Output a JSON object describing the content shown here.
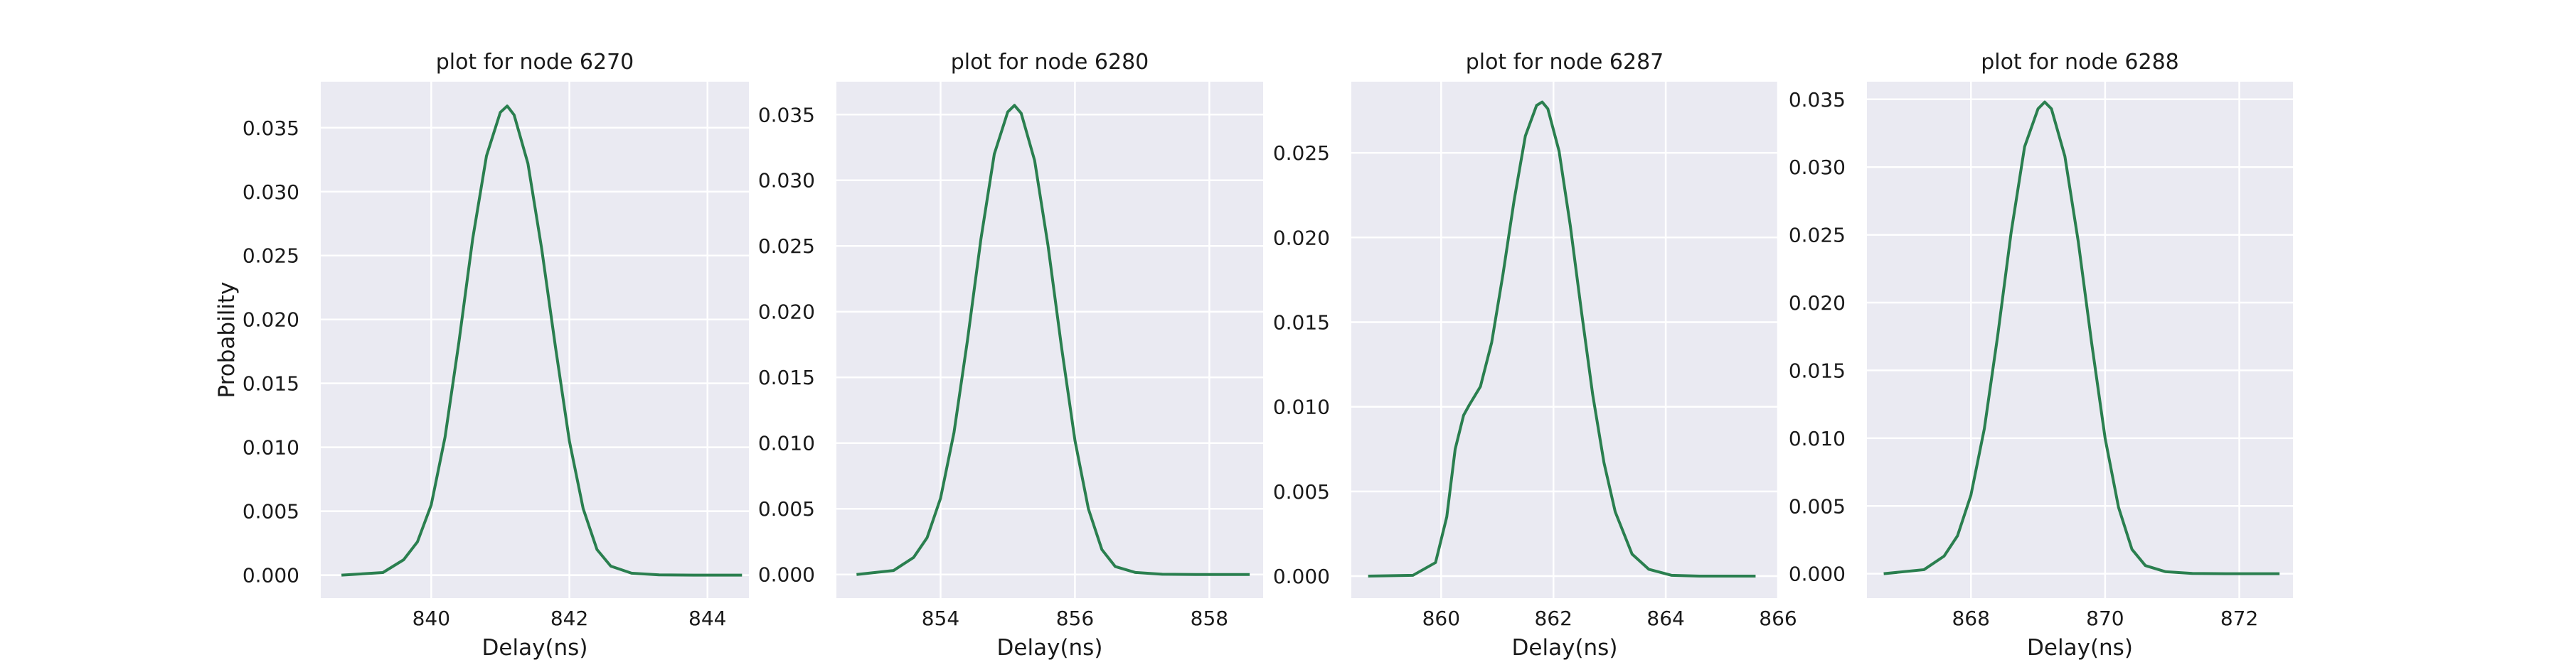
{
  "colors": {
    "line": "#2a7f4f",
    "panel": "#eaeaf2",
    "grid": "#ffffff"
  },
  "chart_data": [
    {
      "type": "line",
      "title": "plot for node 6270",
      "xlabel": "Delay(ns)",
      "ylabel": "Probability",
      "xlim": [
        838.4,
        844.6
      ],
      "ylim": [
        -0.0018,
        0.0386
      ],
      "xticks": [
        840,
        842,
        844
      ],
      "xtick_labels": [
        "840",
        "842",
        "844"
      ],
      "yticks": [
        0.0,
        0.005,
        0.01,
        0.015,
        0.02,
        0.025,
        0.03,
        0.035
      ],
      "ytick_labels": [
        "0.000",
        "0.005",
        "0.010",
        "0.015",
        "0.020",
        "0.025",
        "0.030",
        "0.035"
      ],
      "grid": true,
      "series": [
        {
          "x": [
            838.7,
            839.3,
            839.6,
            839.8,
            840.0,
            840.2,
            840.4,
            840.6,
            840.8,
            841.0,
            841.1,
            841.2,
            841.4,
            841.6,
            841.8,
            842.0,
            842.2,
            842.4,
            842.6,
            842.9,
            843.3,
            843.8,
            844.5
          ],
          "y": [
            0.0,
            0.0002,
            0.0012,
            0.0026,
            0.0055,
            0.0108,
            0.0182,
            0.0263,
            0.0328,
            0.0362,
            0.0367,
            0.036,
            0.0322,
            0.0255,
            0.0178,
            0.0105,
            0.0052,
            0.002,
            0.0007,
            0.00015,
            2e-05,
            0.0,
            0.0
          ]
        }
      ]
    },
    {
      "type": "line",
      "title": "plot for node 6280",
      "xlabel": "Delay(ns)",
      "ylabel": "",
      "xlim": [
        852.45,
        858.8
      ],
      "ylim": [
        -0.0018,
        0.0375
      ],
      "xticks": [
        854,
        856,
        858
      ],
      "xtick_labels": [
        "854",
        "856",
        "858"
      ],
      "yticks": [
        0.0,
        0.005,
        0.01,
        0.015,
        0.02,
        0.025,
        0.03,
        0.035
      ],
      "ytick_labels": [
        "0.000",
        "0.005",
        "0.010",
        "0.015",
        "0.020",
        "0.025",
        "0.030",
        "0.035"
      ],
      "grid": true,
      "series": [
        {
          "x": [
            852.75,
            853.3,
            853.6,
            853.8,
            854.0,
            854.2,
            854.4,
            854.6,
            854.8,
            855.0,
            855.1,
            855.2,
            855.4,
            855.6,
            855.8,
            856.0,
            856.2,
            856.4,
            856.6,
            856.9,
            857.3,
            857.8,
            858.6
          ],
          "y": [
            0.0,
            0.0003,
            0.0013,
            0.0028,
            0.0058,
            0.0108,
            0.0178,
            0.0255,
            0.032,
            0.0352,
            0.0357,
            0.0351,
            0.0315,
            0.025,
            0.0173,
            0.0102,
            0.005,
            0.0019,
            0.0006,
            0.00015,
            2e-05,
            0.0,
            0.0
          ]
        }
      ]
    },
    {
      "type": "line",
      "title": "plot for node 6287",
      "xlabel": "Delay(ns)",
      "ylabel": "",
      "xlim": [
        858.4,
        866.0
      ],
      "ylim": [
        -0.0013,
        0.0292
      ],
      "xticks": [
        860,
        862,
        864,
        866
      ],
      "xtick_labels": [
        "860",
        "862",
        "864",
        "866"
      ],
      "yticks": [
        0.0,
        0.005,
        0.01,
        0.015,
        0.02,
        0.025
      ],
      "ytick_labels": [
        "0.000",
        "0.005",
        "0.010",
        "0.015",
        "0.020",
        "0.025"
      ],
      "grid": true,
      "series": [
        {
          "x": [
            858.7,
            859.5,
            859.9,
            860.1,
            860.25,
            860.4,
            860.5,
            860.7,
            860.9,
            861.1,
            861.3,
            861.5,
            861.7,
            861.8,
            861.9,
            862.1,
            862.3,
            862.5,
            862.7,
            862.9,
            863.1,
            863.4,
            863.7,
            864.1,
            864.6,
            865.6
          ],
          "y": [
            0.0,
            5e-05,
            0.0008,
            0.0035,
            0.0075,
            0.0095,
            0.0101,
            0.0112,
            0.0138,
            0.0178,
            0.0222,
            0.026,
            0.0278,
            0.028,
            0.0276,
            0.0251,
            0.0207,
            0.0156,
            0.0107,
            0.0067,
            0.0038,
            0.0013,
            0.0004,
            5e-05,
            0.0,
            0.0
          ]
        }
      ]
    },
    {
      "type": "line",
      "title": "plot for node 6288",
      "xlabel": "Delay(ns)",
      "ylabel": "",
      "xlim": [
        866.45,
        872.8
      ],
      "ylim": [
        -0.0018,
        0.0363
      ],
      "xticks": [
        868,
        870,
        872
      ],
      "xtick_labels": [
        "868",
        "870",
        "872"
      ],
      "yticks": [
        0.0,
        0.005,
        0.01,
        0.015,
        0.02,
        0.025,
        0.03,
        0.035
      ],
      "ytick_labels": [
        "0.000",
        "0.005",
        "0.010",
        "0.015",
        "0.020",
        "0.025",
        "0.030",
        "0.035"
      ],
      "grid": true,
      "series": [
        {
          "x": [
            866.7,
            867.3,
            867.6,
            867.8,
            868.0,
            868.2,
            868.4,
            868.6,
            868.8,
            869.0,
            869.1,
            869.2,
            869.4,
            869.6,
            869.8,
            870.0,
            870.2,
            870.4,
            870.6,
            870.9,
            871.3,
            871.8,
            872.6
          ],
          "y": [
            0.0,
            0.0003,
            0.0013,
            0.0028,
            0.0058,
            0.0107,
            0.0176,
            0.0252,
            0.0315,
            0.0343,
            0.0348,
            0.0343,
            0.0308,
            0.0245,
            0.017,
            0.01,
            0.0049,
            0.0018,
            0.0006,
            0.00015,
            2e-05,
            0.0,
            0.0
          ]
        }
      ]
    }
  ]
}
